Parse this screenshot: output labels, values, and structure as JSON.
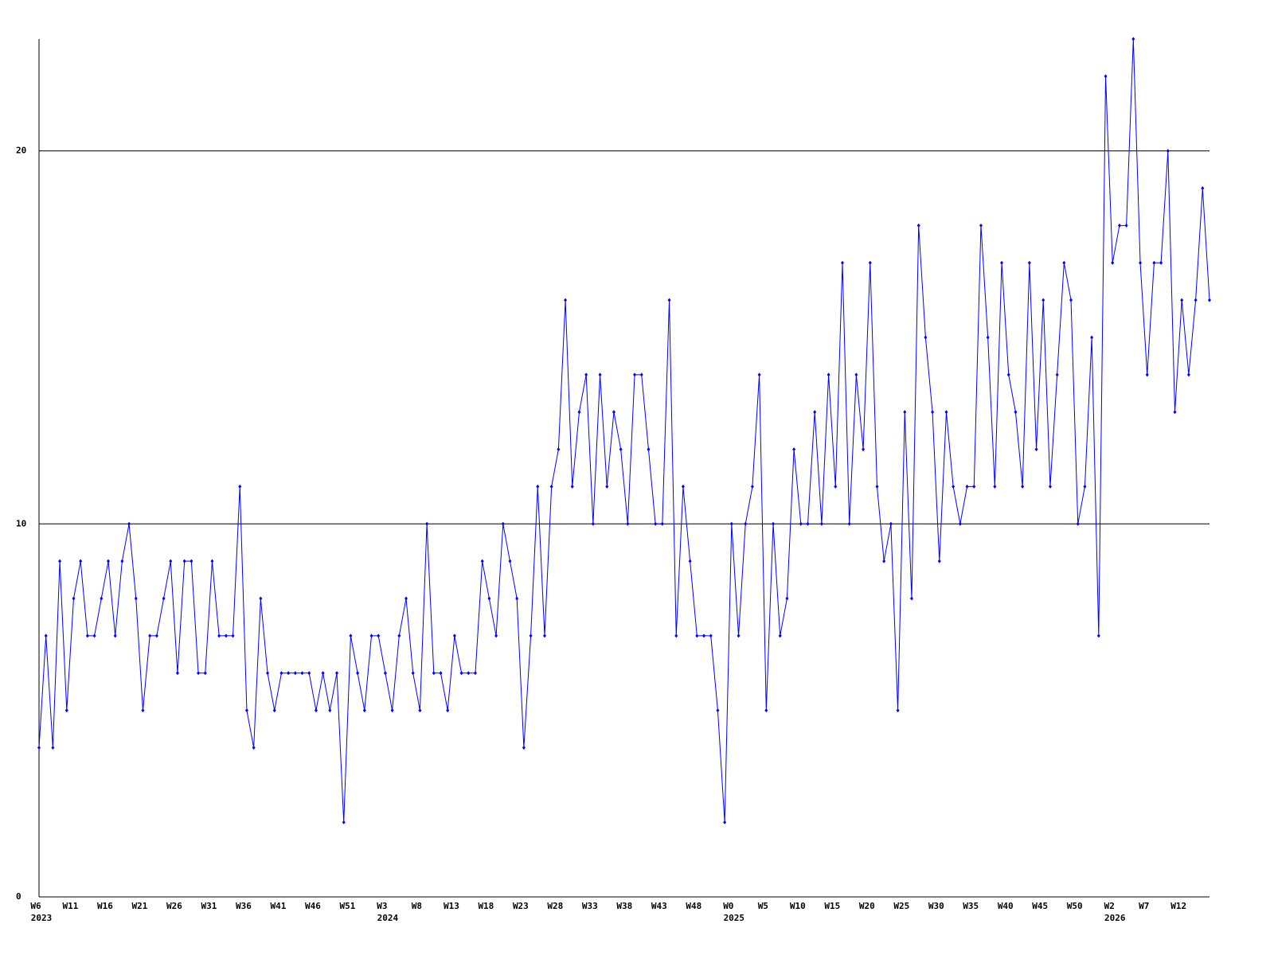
{
  "chart_data": {
    "type": "line",
    "categories": [
      "W6",
      null,
      null,
      null,
      null,
      "W11",
      null,
      null,
      null,
      null,
      "W16",
      null,
      null,
      null,
      null,
      "W21",
      null,
      null,
      null,
      null,
      "W26",
      null,
      null,
      null,
      null,
      "W31",
      null,
      null,
      null,
      null,
      "W36",
      null,
      null,
      null,
      null,
      "W41",
      null,
      null,
      null,
      null,
      "W46",
      null,
      null,
      null,
      null,
      "W51",
      null,
      null,
      null,
      null,
      "W3",
      null,
      null,
      null,
      null,
      "W8",
      null,
      null,
      null,
      null,
      "W13",
      null,
      null,
      null,
      null,
      "W18",
      null,
      null,
      null,
      null,
      "W23",
      null,
      null,
      null,
      null,
      "W28",
      null,
      null,
      null,
      null,
      "W33",
      null,
      null,
      null,
      null,
      "W38",
      null,
      null,
      null,
      null,
      "W43",
      null,
      null,
      null,
      null,
      "W48",
      null,
      null,
      null,
      null,
      "W0",
      null,
      null,
      null,
      null,
      "W5",
      null,
      null,
      null,
      null,
      "W10",
      null,
      null,
      null,
      null,
      "W15",
      null,
      null,
      null,
      null,
      "W20",
      null,
      null,
      null,
      null,
      "W25",
      null,
      null,
      null,
      null,
      "W30",
      null,
      null,
      null,
      null,
      "W35",
      null,
      null,
      null,
      null,
      "W40",
      null,
      null,
      null,
      null,
      "W45",
      null,
      null,
      null,
      null,
      "W50",
      null,
      null,
      null,
      null,
      "W2",
      null,
      null,
      null,
      null,
      "W7",
      null,
      null,
      null,
      null,
      "W12",
      null,
      null,
      null,
      null
    ],
    "years": [
      "2023",
      null,
      null,
      null,
      null,
      null,
      null,
      null,
      null,
      null,
      null,
      null,
      null,
      null,
      null,
      null,
      null,
      null,
      null,
      null,
      null,
      null,
      null,
      null,
      null,
      null,
      null,
      null,
      null,
      null,
      null,
      null,
      null,
      null,
      null,
      null,
      null,
      null,
      null,
      null,
      null,
      null,
      null,
      null,
      null,
      null,
      null,
      null,
      null,
      null,
      "2024",
      null,
      null,
      null,
      null,
      null,
      null,
      null,
      null,
      null,
      null,
      null,
      null,
      null,
      null,
      null,
      null,
      null,
      null,
      null,
      null,
      null,
      null,
      null,
      null,
      null,
      null,
      null,
      null,
      null,
      null,
      null,
      null,
      null,
      null,
      null,
      null,
      null,
      null,
      null,
      null,
      null,
      null,
      null,
      null,
      null,
      null,
      null,
      null,
      null,
      "2025",
      null,
      null,
      null,
      null,
      null,
      null,
      null,
      null,
      null,
      null,
      null,
      null,
      null,
      null,
      null,
      null,
      null,
      null,
      null,
      null,
      null,
      null,
      null,
      null,
      null,
      null,
      null,
      null,
      null,
      null,
      null,
      null,
      null,
      null,
      null,
      null,
      null,
      null,
      null,
      null,
      null,
      null,
      null,
      null,
      null,
      null,
      null,
      null,
      null,
      null,
      null,
      null,
      null,
      null,
      "2026",
      null,
      null,
      null,
      null,
      null,
      null,
      null,
      null,
      null,
      null,
      null,
      null,
      null,
      null
    ],
    "values": [
      4,
      7,
      4,
      9,
      5,
      8,
      9,
      7,
      7,
      8,
      9,
      7,
      9,
      10,
      8,
      5,
      7,
      7,
      8,
      9,
      6,
      9,
      9,
      6,
      6,
      9,
      7,
      7,
      7,
      11,
      5,
      4,
      8,
      6,
      5,
      6,
      6,
      6,
      6,
      6,
      5,
      6,
      5,
      6,
      2,
      7,
      6,
      5,
      7,
      7,
      6,
      5,
      7,
      8,
      6,
      5,
      10,
      6,
      6,
      5,
      7,
      6,
      6,
      6,
      9,
      8,
      7,
      10,
      9,
      8,
      4,
      7,
      11,
      7,
      11,
      12,
      16,
      11,
      13,
      14,
      10,
      14,
      11,
      13,
      12,
      10,
      14,
      14,
      12,
      10,
      10,
      16,
      7,
      11,
      9,
      7,
      7,
      7,
      5,
      2,
      10,
      7,
      10,
      11,
      14,
      5,
      10,
      7,
      8,
      12,
      10,
      10,
      13,
      10,
      14,
      11,
      17,
      10,
      14,
      12,
      17,
      11,
      9,
      10,
      5,
      13,
      8,
      18,
      15,
      13,
      9,
      13,
      11,
      10,
      11,
      11,
      18,
      15,
      11,
      17,
      14,
      13,
      11,
      17,
      12,
      16,
      11,
      14,
      17,
      16,
      10,
      11,
      15,
      7,
      22,
      17,
      18,
      18,
      23,
      17,
      14,
      17,
      17,
      20,
      13,
      16,
      14,
      16,
      19,
      16
    ],
    "color": "#0000ff",
    "ylim": [
      0,
      23
    ],
    "yticks": [
      0,
      10,
      20
    ],
    "grid": true
  }
}
